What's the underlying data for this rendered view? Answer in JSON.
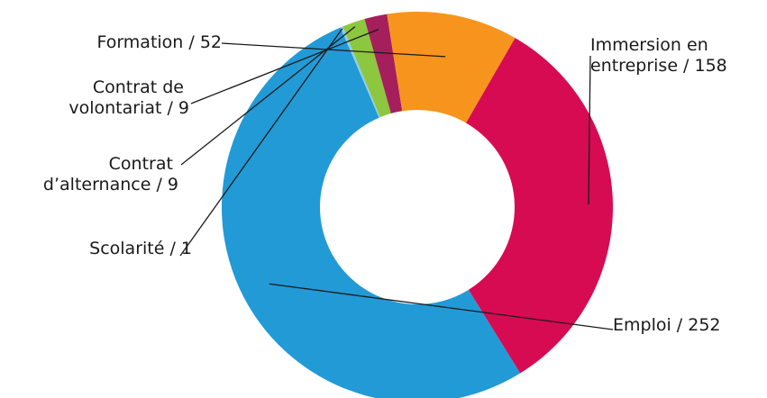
{
  "chart_data": {
    "type": "pie",
    "variant": "donut",
    "title": "",
    "total": 481,
    "slices": [
      {
        "key": "immersion",
        "label_lines": [
          "Immersion en",
          "entreprise / 158"
        ],
        "value": 158,
        "color": "#d60b52"
      },
      {
        "key": "emploi",
        "label_lines": [
          "Emploi / 252"
        ],
        "value": 252,
        "color": "#229ad6"
      },
      {
        "key": "scolarite",
        "label_lines": [
          "Scolarité / 1"
        ],
        "value": 1,
        "color": "#8ecde9"
      },
      {
        "key": "alternance",
        "label_lines": [
          "Contrat",
          "d’alternance / 9"
        ],
        "value": 9,
        "color": "#8dc63f"
      },
      {
        "key": "volontariat",
        "label_lines": [
          "Contrat de",
          "volontariat / 9"
        ],
        "value": 9,
        "color": "#a51f5c"
      },
      {
        "key": "formation",
        "label_lines": [
          "Formation / 52"
        ],
        "value": 52,
        "color": "#f7941d"
      }
    ],
    "start_angle_deg": -60,
    "legend": "none",
    "grid": false
  }
}
